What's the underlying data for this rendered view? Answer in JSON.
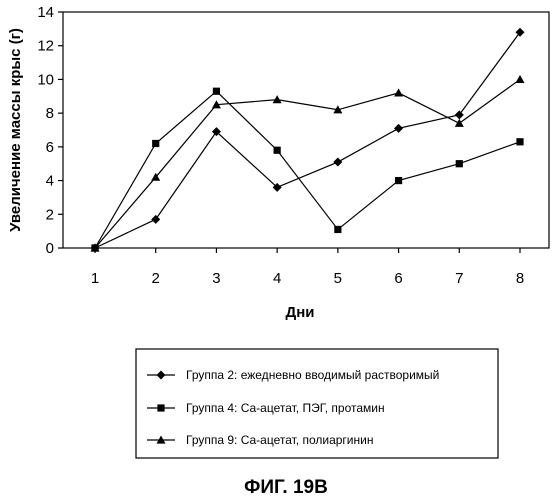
{
  "chart_data": {
    "type": "line",
    "xlabel": "Дни",
    "ylabel": "Увеличение массы крыс (г)",
    "x": [
      1,
      2,
      3,
      4,
      5,
      6,
      7,
      8
    ],
    "xlim": [
      1,
      8
    ],
    "ylim": [
      0,
      14
    ],
    "y_ticks": [
      0,
      2,
      4,
      6,
      8,
      10,
      12,
      14
    ],
    "grid": false,
    "legend_position": "bottom",
    "series": [
      {
        "name": "Группа 2: ежедневно вводимый растворимый",
        "marker": "diamond",
        "values": [
          0,
          1.7,
          6.9,
          3.6,
          5.1,
          7.1,
          7.9,
          12.8
        ]
      },
      {
        "name": "Группа 4: Са-ацетат, ПЭГ, протамин",
        "marker": "square",
        "values": [
          0,
          6.2,
          9.3,
          5.8,
          1.1,
          4.0,
          5.0,
          6.3
        ]
      },
      {
        "name": "Группа 9: Са-ацетат, полиаргинин",
        "marker": "triangle",
        "values": [
          0,
          4.2,
          8.5,
          8.8,
          8.2,
          9.2,
          7.4,
          10.0
        ]
      }
    ]
  },
  "caption": "ФИГ. 19B"
}
